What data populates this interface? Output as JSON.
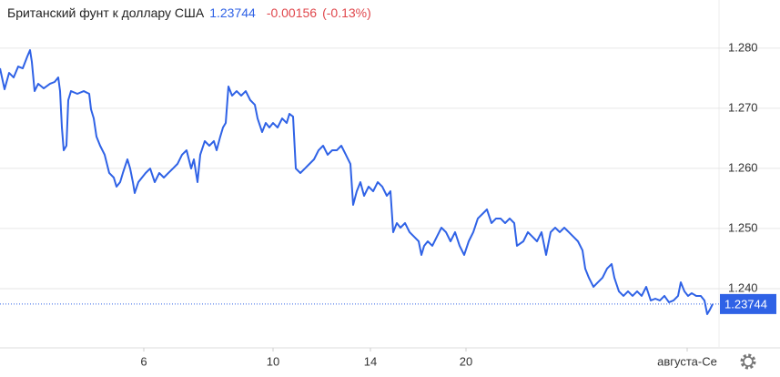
{
  "header": {
    "title": "Британский фунт к доллару США",
    "price": "1.23744",
    "change": "-0.00156",
    "change_pct": "(-0.13%)"
  },
  "chart_data": {
    "type": "line",
    "color": "#2f62e6",
    "grid": true,
    "xlim": [
      0,
      790
    ],
    "xticks": [
      {
        "value": 158,
        "label": "6"
      },
      {
        "value": 300,
        "label": "10"
      },
      {
        "value": 407,
        "label": "14"
      },
      {
        "value": 512,
        "label": "20"
      },
      {
        "value": 755,
        "label": "августа-Се"
      }
    ],
    "ylim": [
      1.23,
      1.288
    ],
    "yticks": [
      {
        "value": 1.24,
        "label": "1.240"
      },
      {
        "value": 1.25,
        "label": "1.250"
      },
      {
        "value": 1.26,
        "label": "1.260"
      },
      {
        "value": 1.27,
        "label": "1.270"
      },
      {
        "value": 1.28,
        "label": "1.280"
      }
    ],
    "x": [
      0,
      5,
      10,
      15,
      20,
      25,
      30,
      33,
      35,
      38,
      42,
      48,
      55,
      60,
      64,
      66,
      68,
      70,
      73,
      75,
      78,
      85,
      92,
      98,
      100,
      103,
      106,
      110,
      115,
      120,
      125,
      128,
      132,
      135,
      140,
      143,
      146,
      148,
      152,
      156,
      160,
      165,
      170,
      175,
      180,
      185,
      190,
      195,
      200,
      205,
      210,
      213,
      217,
      220,
      225,
      230,
      235,
      238,
      242,
      245,
      248,
      251,
      255,
      260,
      265,
      270,
      275,
      280,
      283,
      288,
      292,
      296,
      300,
      305,
      310,
      315,
      318,
      322,
      325,
      330,
      335,
      340,
      345,
      350,
      355,
      360,
      365,
      370,
      375,
      380,
      385,
      388,
      392,
      396,
      400,
      405,
      410,
      415,
      420,
      425,
      429,
      432,
      436,
      440,
      445,
      450,
      455,
      460,
      463,
      466,
      470,
      475,
      480,
      485,
      490,
      495,
      500,
      505,
      510,
      515,
      520,
      525,
      530,
      535,
      540,
      545,
      550,
      555,
      560,
      565,
      568,
      575,
      580,
      585,
      590,
      595,
      600,
      605,
      610,
      615,
      620,
      625,
      630,
      635,
      640,
      643,
      647,
      652,
      657,
      662,
      667,
      672,
      675,
      680,
      685,
      690,
      695,
      700,
      705,
      710,
      715,
      720,
      725,
      730,
      735,
      740,
      745,
      748,
      752,
      756,
      760,
      765,
      770,
      774,
      777,
      780,
      783
    ],
    "series": [
      {
        "values": [
          1.27664,
          1.27316,
          1.27588,
          1.27512,
          1.27694,
          1.27664,
          1.27861,
          1.27967,
          1.2777,
          1.27285,
          1.27407,
          1.27331,
          1.27407,
          1.27437,
          1.27512,
          1.27285,
          1.2668,
          1.26301,
          1.26377,
          1.27134,
          1.27285,
          1.2724,
          1.27285,
          1.2724,
          1.26983,
          1.26831,
          1.26528,
          1.26377,
          1.26226,
          1.25923,
          1.25847,
          1.25696,
          1.25771,
          1.25923,
          1.2615,
          1.25998,
          1.25771,
          1.2559,
          1.25771,
          1.25847,
          1.25923,
          1.25998,
          1.25771,
          1.25923,
          1.25847,
          1.25923,
          1.25998,
          1.26074,
          1.26226,
          1.26301,
          1.25998,
          1.2615,
          1.25771,
          1.26226,
          1.26453,
          1.26377,
          1.26453,
          1.26301,
          1.26528,
          1.2668,
          1.26755,
          1.27361,
          1.2721,
          1.27285,
          1.2721,
          1.27285,
          1.27134,
          1.27058,
          1.26831,
          1.26604,
          1.26755,
          1.2668,
          1.26755,
          1.2668,
          1.26831,
          1.26755,
          1.26907,
          1.26861,
          1.25998,
          1.25923,
          1.25998,
          1.26074,
          1.2615,
          1.26301,
          1.26377,
          1.26226,
          1.26301,
          1.26301,
          1.26377,
          1.26226,
          1.26074,
          1.25393,
          1.2562,
          1.25771,
          1.25544,
          1.25696,
          1.2562,
          1.25771,
          1.25696,
          1.25544,
          1.2562,
          1.24939,
          1.2509,
          1.25014,
          1.2509,
          1.24939,
          1.24863,
          1.24787,
          1.2456,
          1.24712,
          1.24787,
          1.24712,
          1.24863,
          1.25014,
          1.24939,
          1.24787,
          1.24939,
          1.24712,
          1.2456,
          1.24787,
          1.24939,
          1.25166,
          1.25241,
          1.25317,
          1.2509,
          1.25166,
          1.25166,
          1.2509,
          1.25166,
          1.2509,
          1.24712,
          1.24787,
          1.24939,
          1.24863,
          1.24787,
          1.24939,
          1.2456,
          1.24939,
          1.25014,
          1.24939,
          1.25014,
          1.24939,
          1.24863,
          1.24787,
          1.24636,
          1.24333,
          1.24182,
          1.2403,
          1.24106,
          1.24182,
          1.24333,
          1.24409,
          1.24182,
          1.23955,
          1.23879,
          1.23955,
          1.23879,
          1.23955,
          1.23879,
          1.2403,
          1.23803,
          1.23833,
          1.23803,
          1.23879,
          1.23773,
          1.23803,
          1.23879,
          1.24106,
          1.23955,
          1.23879,
          1.23924,
          1.23879,
          1.23879,
          1.23803,
          1.23576,
          1.23652,
          1.23744
        ]
      }
    ]
  }
}
